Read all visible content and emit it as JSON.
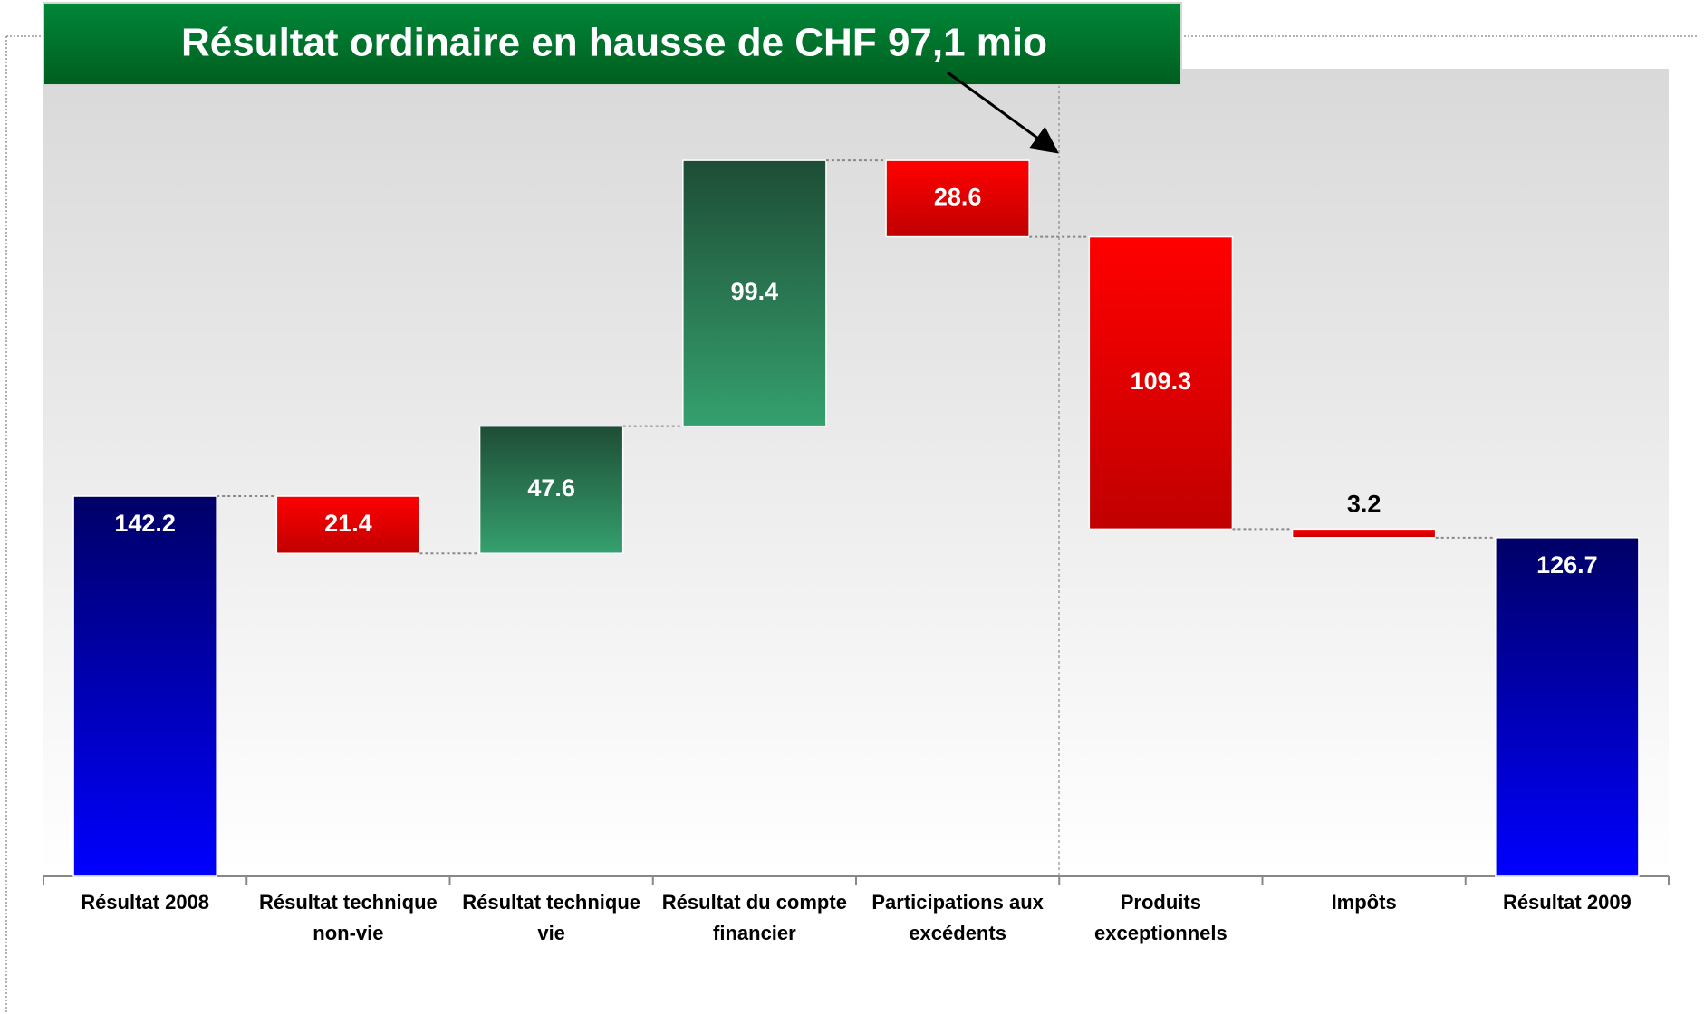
{
  "chart_data": {
    "type": "waterfall",
    "title": "Résultat ordinaire en hausse de CHF 97,1 mio",
    "categories": [
      "Résultat 2008",
      "Résultat technique non-vie",
      "Résultat technique vie",
      "Résultat du compte financier",
      "Participations aux excédents",
      "Produits exceptionnels",
      "Impôts",
      "Résultat 2009"
    ],
    "measure": [
      "total",
      "relative",
      "relative",
      "relative",
      "relative",
      "relative",
      "relative",
      "total"
    ],
    "values": [
      142.2,
      -21.4,
      47.6,
      99.4,
      -28.6,
      -109.3,
      -3.2,
      126.7
    ],
    "value_labels": [
      "142.2",
      "21.4",
      "47.6",
      "99.4",
      "28.6",
      "109.3",
      "3.2",
      "126.7"
    ],
    "total_color": [
      "#000066",
      "#0000ff"
    ],
    "increasing_color": [
      "#1e4d36",
      "#35a06e"
    ],
    "decreasing_color": [
      "#ff0000",
      "#c00000"
    ],
    "ylim": [
      0,
      300
    ]
  }
}
